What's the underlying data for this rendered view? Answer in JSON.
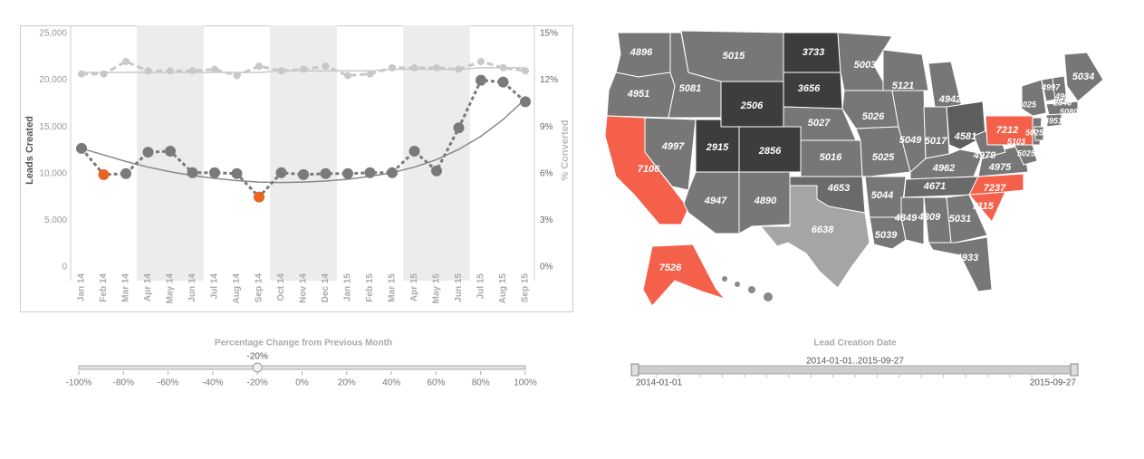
{
  "chart_data": [
    {
      "type": "line",
      "categories": [
        "Jan 14",
        "Feb 14",
        "Mar 14",
        "Apr 14",
        "May 14",
        "Jun 14",
        "Jul 14",
        "Aug 14",
        "Sep 14",
        "Oct 14",
        "Nov 14",
        "Dec 14",
        "Jan 15",
        "Feb 15",
        "Mar 15",
        "Apr 15",
        "May 15",
        "Jun 15",
        "Jul 15",
        "Aug 15",
        "Sep 15"
      ],
      "y_label": "Leads Created",
      "y2_label": "% Converted",
      "ylim": [
        0,
        25000
      ],
      "yticks": [
        0,
        {
          "value": 5000,
          "label": "5,000"
        },
        {
          "value": 10000,
          "label": "10,000"
        },
        {
          "value": 15000,
          "label": "15,000"
        },
        {
          "value": 20000,
          "label": "20,000"
        },
        {
          "value": 25000,
          "label": "25,000"
        }
      ],
      "y2lim": [
        0,
        15
      ],
      "y2ticks": [
        {
          "value": 0,
          "label": "0%"
        },
        {
          "value": 3,
          "label": "3%"
        },
        {
          "value": 6,
          "label": "6%"
        },
        {
          "value": 9,
          "label": "9%"
        },
        {
          "value": 12,
          "label": "12%"
        },
        {
          "value": 15,
          "label": "15%"
        }
      ],
      "series": [
        {
          "color": "#c8c8c8",
          "axis": "y2",
          "style": "dashed",
          "marker": 4,
          "values": [
            12.4,
            12.4,
            13.2,
            12.6,
            12.6,
            12.6,
            12.7,
            12.3,
            12.9,
            12.6,
            12.7,
            12.9,
            12.3,
            12.4,
            12.8,
            12.8,
            12.8,
            12.7,
            13.2,
            12.8,
            12.6
          ]
        },
        {
          "color": "#c8c8c8",
          "axis": "y2",
          "style": "solid",
          "marker": 0,
          "values": [
            12.5,
            12.5,
            12.5,
            12.5,
            12.5,
            12.5,
            12.5,
            12.5,
            12.5,
            12.6,
            12.6,
            12.6,
            12.6,
            12.6,
            12.7,
            12.7,
            12.7,
            12.7,
            12.8,
            12.8,
            12.8
          ]
        },
        {
          "color": "#888888",
          "style": "solid",
          "marker": 0,
          "values": [
            12700,
            12000,
            11300,
            10700,
            10200,
            9800,
            9500,
            9250,
            9100,
            9050,
            9100,
            9200,
            9400,
            9700,
            10100,
            10700,
            11500,
            12600,
            14000,
            15800,
            18000
          ]
        },
        {
          "color": "#7a7a7a",
          "style": "dotted",
          "marker": 6,
          "point_colors": [
            "#7a7a7a",
            "#e8641e",
            "#7a7a7a",
            "#7a7a7a",
            "#7a7a7a",
            "#7a7a7a",
            "#7a7a7a",
            "#7a7a7a",
            "#e8641e",
            "#7a7a7a",
            "#7a7a7a",
            "#7a7a7a",
            "#7a7a7a",
            "#7a7a7a",
            "#7a7a7a",
            "#7a7a7a",
            "#7a7a7a",
            "#7a7a7a",
            "#7a7a7a",
            "#7a7a7a",
            "#7a7a7a"
          ],
          "values": [
            12700,
            9900,
            10000,
            12300,
            12400,
            10100,
            10100,
            10000,
            7500,
            10100,
            9900,
            10000,
            10000,
            10100,
            10100,
            12400,
            10300,
            14900,
            20000,
            19800,
            17700
          ]
        }
      ]
    },
    {
      "type": "choropleth",
      "values": [
        4896,
        4951,
        7106,
        4997,
        5081,
        5015,
        2506,
        2915,
        2856,
        4947,
        4890,
        3733,
        3656,
        5027,
        5016,
        4653,
        6638,
        5003,
        5026,
        5025,
        5044,
        5039,
        5121,
        4942,
        5049,
        5017,
        4581,
        4962,
        4671,
        4849,
        4809,
        5031,
        4933,
        7115,
        7237,
        4975,
        4979,
        7212,
        5025,
        5103,
        5025,
        5025,
        4997,
        4902,
        2846,
        5080,
        4951,
        5034,
        7526
      ],
      "colors": [
        "#777777",
        "#777777",
        "#f4604a",
        "#777777",
        "#777777",
        "#777777",
        "#3d3d3d",
        "#3d3d3d",
        "#3d3d3d",
        "#777777",
        "#777777",
        "#3d3d3d",
        "#3d3d3d",
        "#777777",
        "#777777",
        "#6a6a6a",
        "#a5a5a5",
        "#777777",
        "#777777",
        "#777777",
        "#777777",
        "#777777",
        "#777777",
        "#777777",
        "#777777",
        "#777777",
        "#5e5e5e",
        "#777777",
        "#6a6a6a",
        "#777777",
        "#777777",
        "#777777",
        "#777777",
        "#f4604a",
        "#f4604a",
        "#777777",
        "#777777",
        "#f4604a",
        "#777777",
        "#777777",
        "#777777",
        "#777777",
        "#777777",
        "#777777",
        "#777777",
        "#777777",
        "#777777",
        "#777777",
        "#f4604a"
      ]
    }
  ],
  "controls": {
    "percent_slider": {
      "title": "Percentage Change from Previous Month",
      "value": -20,
      "value_label": "-20%",
      "range": [
        -100,
        100
      ],
      "ticks": [
        {
          "value": -100,
          "label": "-100%"
        },
        {
          "value": -80,
          "label": "-80%"
        },
        {
          "value": -60,
          "label": "-60%"
        },
        {
          "value": -40,
          "label": "-40%"
        },
        {
          "value": -20,
          "label": "-20%"
        },
        {
          "value": 0,
          "label": "0%"
        },
        {
          "value": 20,
          "label": "20%"
        },
        {
          "value": 40,
          "label": "40%"
        },
        {
          "value": 60,
          "label": "60%"
        },
        {
          "value": 80,
          "label": "80%"
        },
        {
          "value": 100,
          "label": "100%"
        }
      ]
    },
    "date_slider": {
      "title": "Lead Creation Date",
      "range_label": "2014-01-01..2015-09-27",
      "start": "2014-01-01",
      "end": "2015-09-27"
    }
  }
}
